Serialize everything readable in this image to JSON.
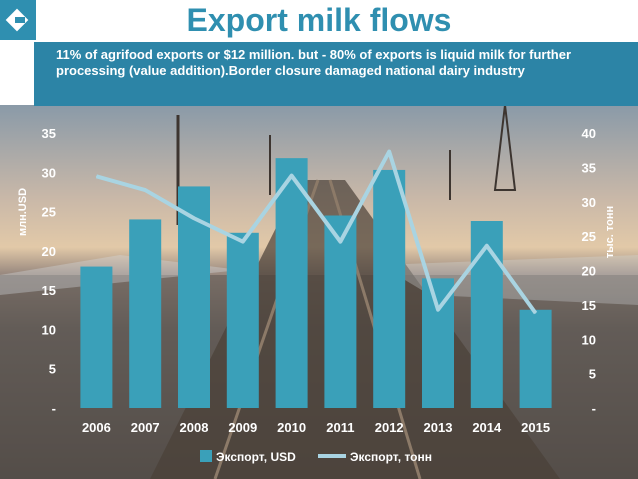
{
  "slide": {
    "title": "Export milk flows",
    "subtitle": "11% of agrifood exports or $12 million. but  - 80% of exports is liquid milk for further processing (value addition).Border closure damaged national dairy industry"
  },
  "colors": {
    "brand": "#2f8fb0",
    "banner": "#2c84a6",
    "bar": "#3aa0b9",
    "line": "#a9d4e2",
    "text": "#ffffff"
  },
  "chart_data": {
    "type": "bar",
    "categories": [
      "2006",
      "2007",
      "2008",
      "2009",
      "2010",
      "2011",
      "2012",
      "2013",
      "2014",
      "2015"
    ],
    "series": [
      {
        "name": "Экспорт, USD",
        "type": "bar",
        "axis": "left",
        "values": [
          18,
          24,
          28.2,
          22.3,
          31.8,
          24.5,
          30.3,
          16.5,
          23.8,
          12.5
        ]
      },
      {
        "name": "Экспорт, тонн",
        "type": "line",
        "axis": "right",
        "values": [
          33.7,
          31.7,
          27.6,
          24.2,
          33.8,
          24.2,
          37.3,
          14.3,
          23.6,
          13.8
        ]
      }
    ],
    "ylabel": "млн.USD",
    "y2label": "тыс. тонн",
    "ylim": [
      0,
      35
    ],
    "y2lim": [
      0,
      40
    ],
    "yticks": [
      "-",
      "5",
      "10",
      "15",
      "20",
      "25",
      "30",
      "35"
    ],
    "y2ticks": [
      "-",
      "5",
      "10",
      "15",
      "20",
      "25",
      "30",
      "35",
      "40"
    ],
    "legend": "bottom",
    "grid": false
  }
}
